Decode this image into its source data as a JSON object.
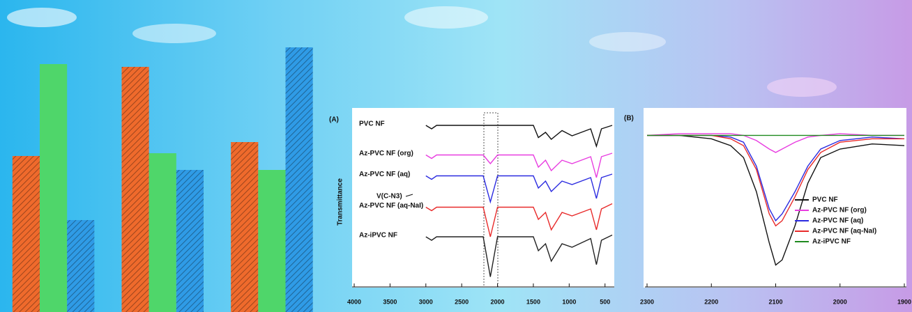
{
  "chart_data": [
    {
      "type": "bar",
      "categories": [
        null,
        null,
        null
      ],
      "ylim": [
        0,
        100
      ],
      "series": [
        {
          "color": "#ef6a2c",
          "values": [
            56,
            88,
            61
          ]
        },
        {
          "color": "#4fd66a",
          "values": [
            89,
            57,
            51
          ]
        },
        {
          "color": "#2f9be6",
          "values": [
            33,
            51,
            95
          ]
        }
      ]
    },
    {
      "type": "line",
      "panel": "(A)",
      "y_label": "Transmittance",
      "annotation": "V(C-N3)",
      "xlim": [
        4000,
        400
      ],
      "ylim": [
        0,
        100
      ],
      "xticks": [
        4000,
        3500,
        3000,
        2500,
        2000,
        1500,
        1000,
        500
      ],
      "x": [
        3000,
        2920,
        2850,
        2500,
        2200,
        2100,
        2000,
        1500,
        1430,
        1330,
        1250,
        1100,
        960,
        700,
        620,
        550,
        400
      ],
      "series": [
        {
          "name": "PVC NF",
          "color": "#111111",
          "values": [
            92,
            90,
            92,
            92,
            92,
            92,
            92,
            92,
            85,
            88,
            84,
            89,
            86,
            90,
            80,
            90,
            92
          ]
        },
        {
          "name": "Az-PVC NF (org)",
          "color": "#e83de0",
          "values": [
            75,
            73,
            75,
            75,
            75,
            70,
            75,
            75,
            68,
            72,
            66,
            72,
            70,
            74,
            62,
            74,
            76
          ]
        },
        {
          "name": "Az-PVC NF (aq)",
          "color": "#2a2ae0",
          "values": [
            63,
            61,
            63,
            63,
            63,
            48,
            63,
            63,
            56,
            60,
            54,
            60,
            58,
            62,
            50,
            62,
            64
          ]
        },
        {
          "name": "Az-PVC NF (aq-NaI)",
          "color": "#e82a2a",
          "values": [
            45,
            43,
            45,
            45,
            45,
            28,
            45,
            45,
            38,
            42,
            32,
            42,
            40,
            44,
            32,
            44,
            47
          ]
        },
        {
          "name": "Az-iPVC NF",
          "color": "#222222",
          "values": [
            28,
            26,
            28,
            28,
            28,
            5,
            28,
            28,
            20,
            24,
            14,
            24,
            22,
            27,
            12,
            26,
            29
          ]
        }
      ]
    },
    {
      "type": "line",
      "panel": "(B)",
      "legend": "lower right",
      "xlim": [
        2300,
        1900
      ],
      "ylim": [
        0,
        100
      ],
      "xticks": [
        2300,
        2200,
        2100,
        2000,
        1900
      ],
      "x": [
        2300,
        2250,
        2200,
        2170,
        2150,
        2130,
        2110,
        2100,
        2090,
        2070,
        2050,
        2030,
        2000,
        1950,
        1900
      ],
      "series": [
        {
          "name": "PVC NF",
          "color": "#111111",
          "values": [
            88,
            88,
            86,
            82,
            75,
            55,
            25,
            12,
            15,
            35,
            60,
            75,
            80,
            83,
            82
          ]
        },
        {
          "name": "Az-PVC NF (org)",
          "color": "#e83de0",
          "values": [
            88,
            89,
            89,
            89,
            88,
            85,
            80,
            78,
            80,
            84,
            87,
            88,
            89,
            88,
            88
          ]
        },
        {
          "name": "Az-PVC NF (aq)",
          "color": "#2a2ae0",
          "values": [
            88,
            88,
            88,
            87,
            84,
            70,
            45,
            38,
            42,
            55,
            70,
            80,
            85,
            87,
            86
          ]
        },
        {
          "name": "Az-PVC NF (aq-NaI)",
          "color": "#e82a2a",
          "values": [
            88,
            88,
            88,
            86,
            82,
            68,
            42,
            35,
            38,
            52,
            68,
            78,
            84,
            86,
            86
          ]
        },
        {
          "name": "Az-iPVC NF",
          "color": "#1f8a1f",
          "values": [
            88,
            88,
            88,
            88,
            88,
            88,
            88,
            88,
            88,
            88,
            88,
            88,
            88,
            88,
            88
          ]
        }
      ]
    }
  ]
}
